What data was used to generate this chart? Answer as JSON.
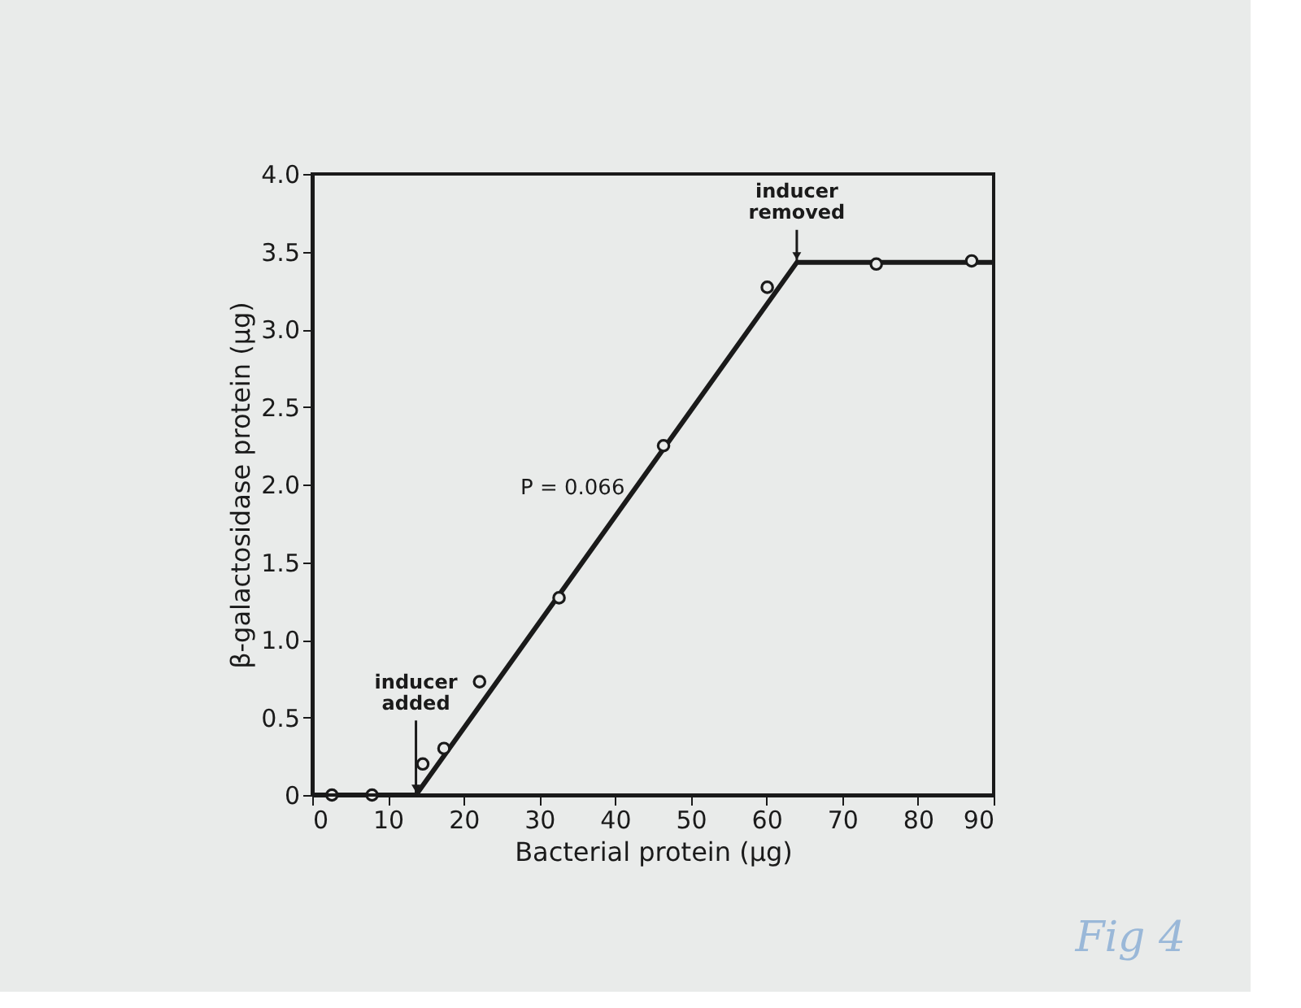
{
  "chart_data": {
    "type": "scatter",
    "xlabel": "Bacterial protein (µg)",
    "ylabel": "β-galactosidase protein (µg)",
    "xlim": [
      0,
      90
    ],
    "xticks": [
      0,
      10,
      20,
      30,
      40,
      50,
      60,
      70,
      80,
      90
    ],
    "ylim": [
      0,
      4.0
    ],
    "yticks": [
      {
        "value": 0,
        "label": "0"
      },
      0.5,
      {
        "value": 1,
        "label": "1.0"
      },
      1.5,
      {
        "value": 2,
        "label": "2.0"
      },
      2.5,
      {
        "value": 3,
        "label": "3.0"
      },
      3.5,
      {
        "value": 4,
        "label": "4.0"
      }
    ],
    "grid": false,
    "marker": "circle",
    "series": [
      {
        "color": "#1a1a1a",
        "x": [
          2.6,
          7.9,
          14.6,
          17.4,
          22.1,
          32.6,
          46.4,
          60.1,
          74.5,
          87.1
        ],
        "values": [
          0,
          0,
          0.2,
          0.3,
          0.73,
          1.27,
          2.25,
          3.27,
          3.42,
          3.44
        ]
      },
      {
        "type": "line",
        "color": "#1a1a1a",
        "marker": "none",
        "line_style": "solid",
        "x": [
          0,
          13.7,
          64,
          90
        ],
        "values": [
          0,
          0,
          3.43,
          3.43
        ]
      }
    ],
    "annotations": [
      {
        "text": "inducer added",
        "x": 13.7,
        "y": 0
      },
      {
        "text": "inducer removed",
        "x": 64,
        "y": 3.43
      },
      "P = 0.066",
      "Fig 4"
    ]
  }
}
